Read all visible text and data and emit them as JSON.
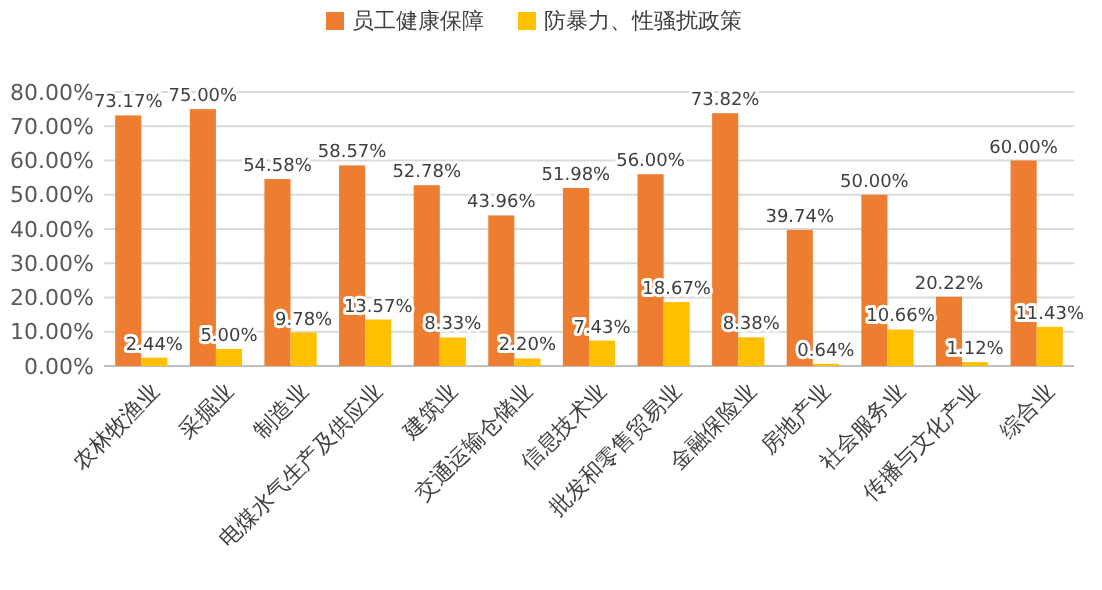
{
  "chart_data": {
    "type": "bar",
    "categories": [
      "农林牧渔业",
      "采掘业",
      "制造业",
      "电煤水气生产及供应业",
      "建筑业",
      "交通运输仓储业",
      "信息技术业",
      "批发和零售贸易业",
      "金融保险业",
      "房地产业",
      "社会服务业",
      "传播与文化产业",
      "综合业"
    ],
    "series": [
      {
        "name": "员工健康保障",
        "color": "#ed7d31",
        "values": [
          73.17,
          75.0,
          54.58,
          58.57,
          52.78,
          43.96,
          51.98,
          56.0,
          73.82,
          39.74,
          50.0,
          20.22,
          60.0
        ],
        "value_labels": [
          "73.17%",
          "75.00%",
          "54.58%",
          "58.57%",
          "52.78%",
          "43.96%",
          "51.98%",
          "56.00%",
          "73.82%",
          "39.74%",
          "50.00%",
          "20.22%",
          "60.00%"
        ]
      },
      {
        "name": "防暴力、性骚扰政策",
        "color": "#ffc000",
        "values": [
          2.44,
          5.0,
          9.78,
          13.57,
          8.33,
          2.2,
          7.43,
          18.67,
          8.38,
          0.64,
          10.66,
          1.12,
          11.43
        ],
        "value_labels": [
          "2.44%",
          "5.00%",
          "9.78%",
          "13.57%",
          "8.33%",
          "2.20%",
          "7.43%",
          "18.67%",
          "8.38%",
          "0.64%",
          "10.66%",
          "1.12%",
          "11.43%"
        ]
      }
    ],
    "ylim": [
      0,
      80
    ],
    "yticks": [
      {
        "value": 0,
        "label": "0.00%"
      },
      {
        "value": 10,
        "label": "10.00%"
      },
      {
        "value": 20,
        "label": "20.00%"
      },
      {
        "value": 30,
        "label": "30.00%"
      },
      {
        "value": 40,
        "label": "40.00%"
      },
      {
        "value": 50,
        "label": "50.00%"
      },
      {
        "value": 60,
        "label": "60.00%"
      },
      {
        "value": 70,
        "label": "70.00%"
      },
      {
        "value": 80,
        "label": "80.00%"
      }
    ],
    "grid": "y",
    "legend": "top"
  }
}
